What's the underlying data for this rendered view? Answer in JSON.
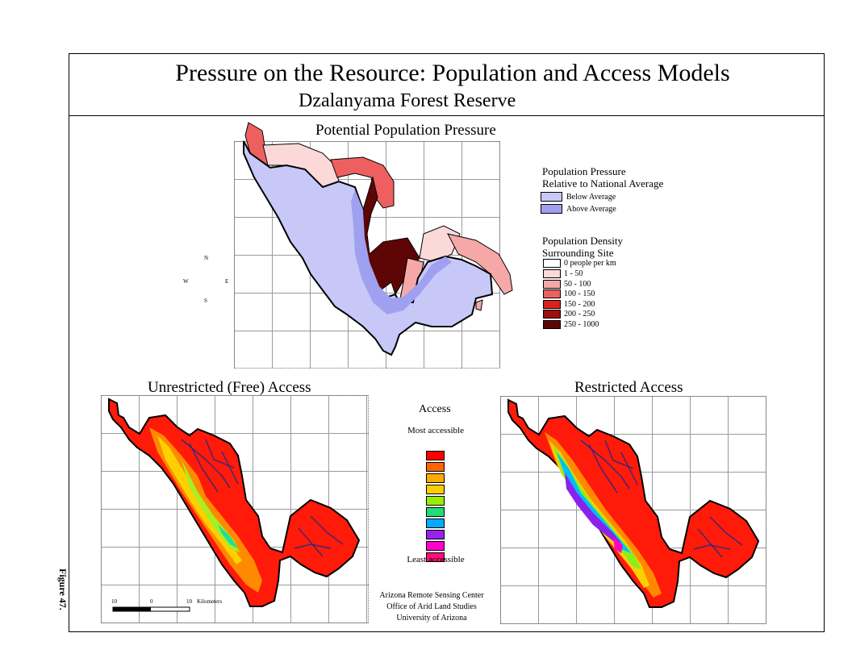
{
  "header": {
    "title": "Pressure on the Resource: Population and Access Models",
    "subtitle": "Dzalanyama Forest Reserve"
  },
  "population_map": {
    "title": "Potential Population Pressure",
    "pressure_legend": {
      "heading1": "Population Pressure",
      "heading2": "Relative to National Average",
      "items": [
        {
          "label": "Below Average",
          "color": "#c8c8f8"
        },
        {
          "label": "Above Average",
          "color": "#a0a0f0"
        }
      ]
    },
    "density_legend": {
      "heading1": "Population Density",
      "heading2": "Surrounding Site",
      "items": [
        {
          "label": "0   people per km",
          "color": "#ffffff"
        },
        {
          "label": "1 - 50",
          "color": "#fbd9d9"
        },
        {
          "label": "50 - 100",
          "color": "#f6a8a8"
        },
        {
          "label": "100 - 150",
          "color": "#ee6060"
        },
        {
          "label": "150 - 200",
          "color": "#dd1f1f"
        },
        {
          "label": "200 - 250",
          "color": "#9e0e0e"
        },
        {
          "label": "250 - 1000",
          "color": "#5e0505"
        }
      ]
    },
    "compass": {
      "n": "N",
      "s": "S",
      "e": "E",
      "w": "W"
    }
  },
  "unrestricted_map": {
    "title": "Unrestricted (Free) Access",
    "scalebar": {
      "ticks": [
        "10",
        "0",
        "10"
      ],
      "unit": "Kilometers"
    }
  },
  "restricted_map": {
    "title": "Restricted Access"
  },
  "access_legend": {
    "title": "Access",
    "top_label": "Most accessible",
    "bottom_label": "Least accessible",
    "colors": [
      "#ff0000",
      "#ff6600",
      "#ffaa00",
      "#ffcc00",
      "#99ee00",
      "#22dd77",
      "#00aaff",
      "#9922ee",
      "#ff00cc",
      "#ff1177"
    ]
  },
  "credits": {
    "line1": "Arizona Remote Sensing Center",
    "line2": "Office of Arid Land Studies",
    "line3": "University of Arizona"
  },
  "figure_label": "Figure 47."
}
